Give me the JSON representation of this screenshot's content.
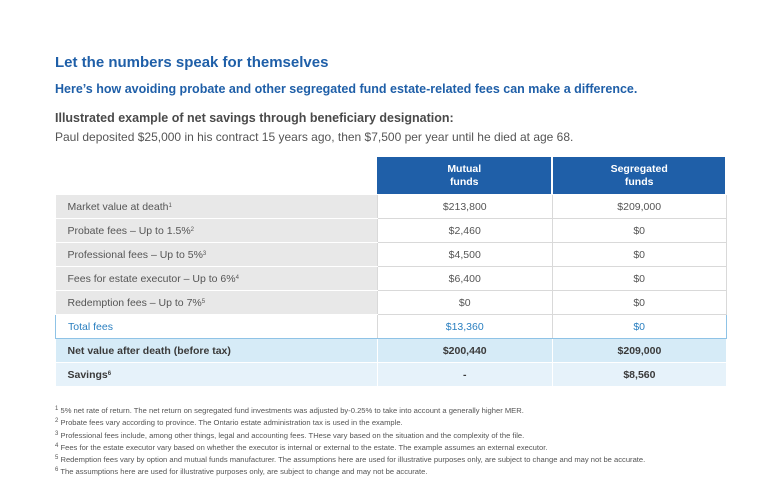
{
  "heading": "Let the numbers speak for themselves",
  "subheading": "Here’s how avoiding probate and other segregated fund estate-related fees can make a difference.",
  "example_title": "Illustrated example of net savings through beneficiary designation:",
  "example_text": "Paul deposited $25,000 in his contract 15 years ago, then $7,500 per year until he died at age 68.",
  "table": {
    "columns": [
      {
        "line1": "Mutual",
        "line2": "funds"
      },
      {
        "line1": "Segregated",
        "line2": "funds"
      }
    ],
    "rows": [
      {
        "label": "Market value at death",
        "sup": "1",
        "mutual": "$213,800",
        "segregated": "$209,000"
      },
      {
        "label": "Probate fees – Up to 1.5%",
        "sup": "2",
        "mutual": "$2,460",
        "segregated": "$0"
      },
      {
        "label": "Professional fees – Up to 5%",
        "sup": "3",
        "mutual": "$4,500",
        "segregated": "$0"
      },
      {
        "label": "Fees for estate executor – Up to 6%",
        "sup": "4",
        "mutual": "$6,400",
        "segregated": "$0"
      },
      {
        "label": "Redemption fees – Up to 7%",
        "sup": "5",
        "mutual": "$0",
        "segregated": "$0"
      },
      {
        "label": "Total fees",
        "sup": "",
        "mutual": "$13,360",
        "segregated": "$0"
      },
      {
        "label": "Net value after death (before tax)",
        "sup": "",
        "mutual": "$200,440",
        "segregated": "$209,000"
      },
      {
        "label": "Savings",
        "sup": "6",
        "mutual": "-",
        "segregated": "$8,560"
      }
    ]
  },
  "footnotes": [
    {
      "num": "1",
      "text": "5% net rate of return. The net return on segregated fund investments was adjusted by-0.25% to take into account a generally higher MER."
    },
    {
      "num": "2",
      "text": "Probate fees vary according to province. The Ontario estate administration tax is used in the example."
    },
    {
      "num": "3",
      "text": "Professional fees include, among other things, legal and accounting fees. THese vary based on the situation and the complexity of the file."
    },
    {
      "num": "4",
      "text": "Fees for the estate executor vary based on whether the executor is internal or external to the estate. The example assumes an external executor."
    },
    {
      "num": "5",
      "text": "Redemption fees vary by option and  mutual funds manufacturer. The assumptions here are used for illustrative purposes only, are subject to change and may not be accurate."
    },
    {
      "num": "6",
      "text": "The assumptions here are used for illustrative purposes only, are subject to change and may not be accurate."
    }
  ],
  "colors": {
    "accent": "#1f5fa8",
    "label_bg": "#e8e8e8",
    "net_bg": "#d6ebf7",
    "savings_bg": "#e6f2fa",
    "total_border": "#8fc3e6"
  }
}
